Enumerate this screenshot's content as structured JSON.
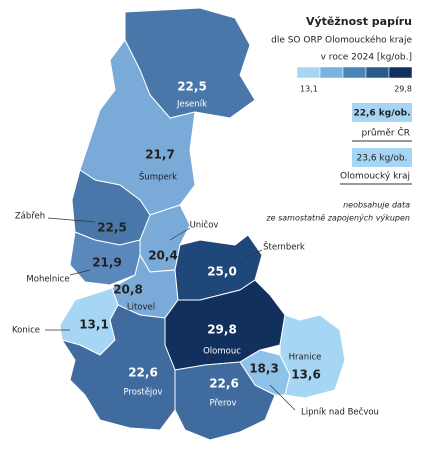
{
  "title": "Výtěžnost papíru",
  "subtitle": [
    "dle SO ORP Olomouckého kraje",
    "v roce 2024 [kg/ob.]"
  ],
  "legend": {
    "min": "13,1",
    "max": "29,8",
    "colors": [
      "#a6d6f4",
      "#74b3e2",
      "#4d83bb",
      "#2c5a8d",
      "#13305e"
    ]
  },
  "comparisons": [
    {
      "value": "22,6 kg/ob.",
      "label": "průměr ČR",
      "color": "#a6d6f4"
    },
    {
      "value": "23,6 kg/ob.",
      "label": "Olomoucký kraj",
      "color": "#a6d6f4"
    }
  ],
  "note": [
    "neobsahuje data",
    "ze samostatně zapojených výkupen"
  ],
  "regions": [
    {
      "name": "Jeseník",
      "value": "22,5",
      "color": "#4a77aa"
    },
    {
      "name": "Šumperk",
      "value": "21,7",
      "color": "#7aabd8"
    },
    {
      "name": "Zábřeh",
      "value": "22,5",
      "color": "#4a77aa"
    },
    {
      "name": "Uničov",
      "value": "20,4",
      "color": "#7aabd8"
    },
    {
      "name": "Mohelnice",
      "value": "21,9",
      "color": "#5a88bd"
    },
    {
      "name": "Litovel",
      "value": "20,8",
      "color": "#7aabd8"
    },
    {
      "name": "Šternberk",
      "value": "25,0",
      "color": "#1f477a"
    },
    {
      "name": "Olomouc",
      "value": "29,8",
      "color": "#12305e"
    },
    {
      "name": "Konice",
      "value": "13,1",
      "color": "#a6d6f4"
    },
    {
      "name": "Prostějov",
      "value": "22,6",
      "color": "#3f6b9e"
    },
    {
      "name": "Přerov",
      "value": "22,6",
      "color": "#3f6b9e"
    },
    {
      "name": "Lipník nad Bečvou",
      "value": "18,3",
      "color": "#8ec2e8"
    },
    {
      "name": "Hranice",
      "value": "13,6",
      "color": "#a6d6f4"
    }
  ]
}
